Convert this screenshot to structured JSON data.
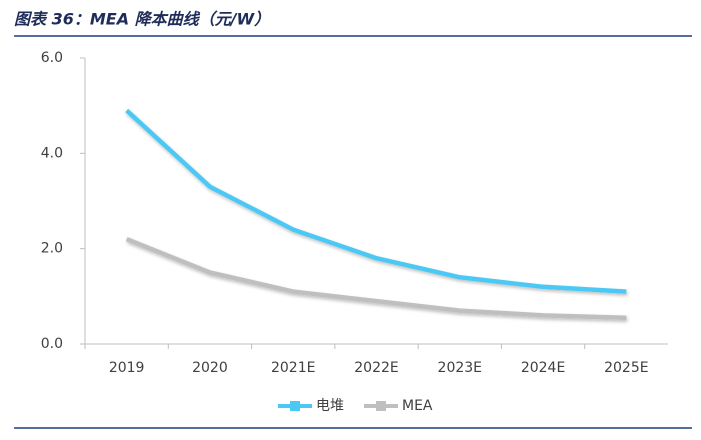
{
  "chart_data": {
    "type": "line",
    "title": "图表 36：MEA 降本曲线（元/W）",
    "categories": [
      "2019",
      "2020",
      "2021E",
      "2022E",
      "2023E",
      "2024E",
      "2025E"
    ],
    "series": [
      {
        "name": "电堆",
        "color": "#4cc8f4",
        "values": [
          4.9,
          3.3,
          2.4,
          1.8,
          1.4,
          1.2,
          1.1
        ]
      },
      {
        "name": "MEA",
        "color": "#bfbfbf",
        "values": [
          2.2,
          1.5,
          1.1,
          0.9,
          0.7,
          0.6,
          0.55
        ]
      }
    ],
    "ylim": [
      0,
      6
    ],
    "yticks": [
      {
        "value": 0,
        "label": "0.0"
      },
      {
        "value": 2,
        "label": "2.0"
      },
      {
        "value": 4,
        "label": "4.0"
      },
      {
        "value": 6,
        "label": "6.0"
      }
    ],
    "legend": "bottom"
  }
}
